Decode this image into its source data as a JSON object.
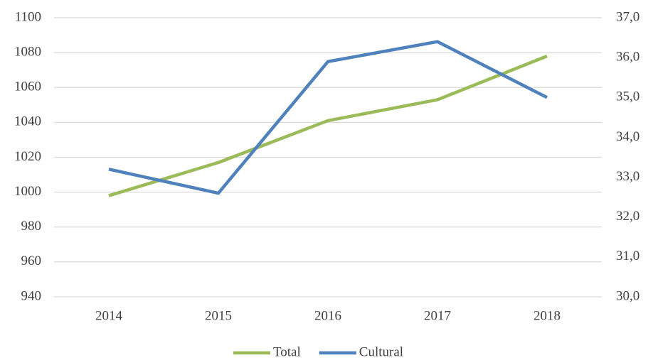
{
  "chart_data": {
    "type": "line",
    "categories": [
      "2014",
      "2015",
      "2016",
      "2017",
      "2018"
    ],
    "series": [
      {
        "name": "Total",
        "color": "#9bbb59",
        "values": [
          998,
          1017,
          1041,
          1053,
          1078
        ]
      },
      {
        "name": "Cultural",
        "color": "#4f81bd",
        "axis": "y2",
        "values": [
          33.2,
          32.6,
          35.9,
          36.4,
          35.0
        ]
      }
    ],
    "ylim": [
      940,
      1100
    ],
    "yticks": [
      940,
      960,
      980,
      1000,
      1020,
      1040,
      1060,
      1080,
      1100
    ],
    "y2lim": [
      30,
      37
    ],
    "y2ticks": [
      {
        "value": 30,
        "label": "30,0"
      },
      {
        "value": 31,
        "label": "31,0"
      },
      {
        "value": 32,
        "label": "32,0"
      },
      {
        "value": 33,
        "label": "33,0"
      },
      {
        "value": 34,
        "label": "34,0"
      },
      {
        "value": 35,
        "label": "35,0"
      },
      {
        "value": 36,
        "label": "36,0"
      },
      {
        "value": 37,
        "label": "37,0"
      }
    ],
    "grid": true,
    "legend": "bottom"
  }
}
